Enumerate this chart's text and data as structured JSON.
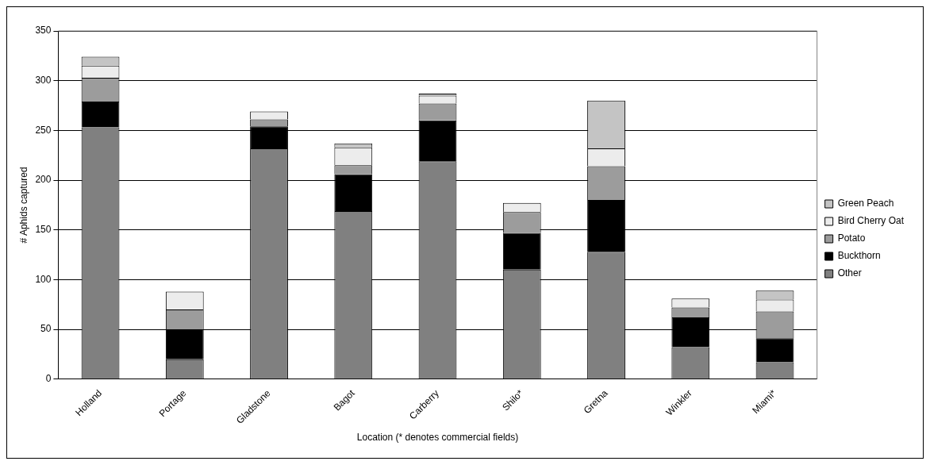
{
  "chart_data": {
    "type": "bar",
    "stacked": true,
    "xlabel": "Location (* denotes commercial fields)",
    "ylabel": "# Aphids captured",
    "categories": [
      "Holland",
      "Portage",
      "Gladstone",
      "Bagot",
      "Carberry",
      "Shilo*",
      "Gretna",
      "Winkler",
      "Miami*"
    ],
    "series": [
      {
        "name": "Other",
        "color": "#808080",
        "values": [
          253,
          20,
          232,
          169,
          219,
          110,
          128,
          32,
          17
        ]
      },
      {
        "name": "Buckthorn",
        "color": "#000000",
        "values": [
          26,
          30,
          22,
          37,
          41,
          37,
          52,
          30,
          24
        ]
      },
      {
        "name": "Potato",
        "color": "#9c9c9c",
        "values": [
          24,
          20,
          7,
          9,
          17,
          21,
          34,
          10,
          27
        ]
      },
      {
        "name": "Bird Cherry Oat",
        "color": "#ececec",
        "values": [
          12,
          18,
          8,
          18,
          8,
          9,
          18,
          9,
          12
        ]
      },
      {
        "name": "Green Peach",
        "color": "#c4c4c4",
        "values": [
          9,
          0,
          0,
          4,
          2,
          null,
          48,
          0,
          9
        ]
      }
    ],
    "ylim": [
      0,
      350
    ],
    "yticks": [
      0,
      50,
      100,
      150,
      200,
      250,
      300,
      350
    ],
    "grid": "y",
    "legend": "right"
  }
}
